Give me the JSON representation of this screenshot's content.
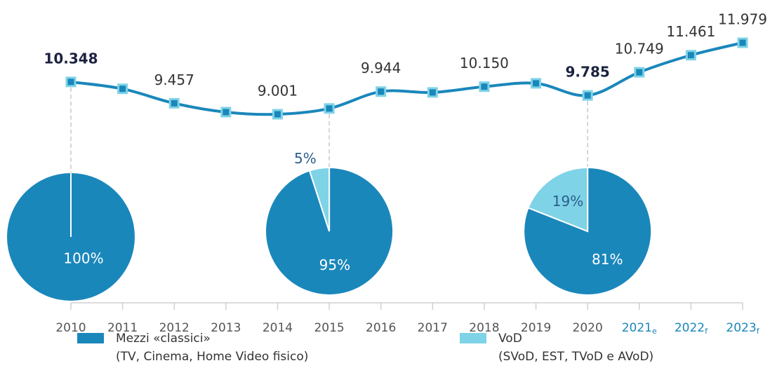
{
  "chart_data": {
    "type": "line",
    "categories": [
      "2010",
      "2011",
      "2012",
      "2013",
      "2014",
      "2015",
      "2016",
      "2017",
      "2018",
      "2019",
      "2020",
      "2021",
      "2022",
      "2023"
    ],
    "category_subscripts": [
      null,
      null,
      null,
      null,
      null,
      null,
      null,
      null,
      null,
      null,
      null,
      "e",
      "f",
      "f"
    ],
    "series": [
      {
        "color": "#1a87bb",
        "values": [
          10.348,
          10.06,
          9.457,
          9.09,
          9.001,
          9.24,
          9.944,
          9.91,
          10.15,
          10.29,
          9.785,
          10.749,
          11.461,
          11.979
        ],
        "value_labels": [
          "10.348",
          null,
          "9.457",
          null,
          "9.001",
          null,
          "9.944",
          null,
          "10.150",
          null,
          "9.785",
          "10.749",
          "11.461",
          "11.979"
        ]
      }
    ],
    "bold_labels": [
      "2010",
      "2020"
    ],
    "forecast_color": "#1a87bb",
    "pies": {
      "type": "pie",
      "slices": [
        {
          "name": "Mezzi «classici»",
          "note": "(TV, Cinema, Home Video fisico)",
          "color": "#1a87bb"
        },
        {
          "name": "VoD",
          "note": "(SVoD, EST, TVoD e AVoD)",
          "color": "#7fd3e6"
        }
      ],
      "charts": [
        {
          "category": "2010",
          "values": [
            100,
            0
          ],
          "value_labels": [
            "100%",
            null
          ]
        },
        {
          "category": "2015",
          "values": [
            95,
            5
          ],
          "value_labels": [
            "95%",
            "5%"
          ]
        },
        {
          "category": "2020",
          "values": [
            81,
            19
          ],
          "value_labels": [
            "81%",
            "19%"
          ]
        }
      ]
    }
  }
}
